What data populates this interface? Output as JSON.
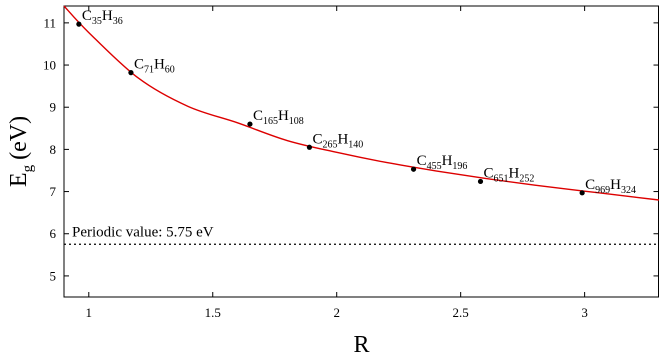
{
  "chart_data": {
    "type": "scatter",
    "title": "",
    "xlabel": "R",
    "ylabel": {
      "main": "E",
      "sub": "g",
      "unit": "(eV)"
    },
    "xlim": [
      0.9,
      3.3
    ],
    "ylim": [
      4.5,
      11.4
    ],
    "xticks": [
      1,
      1.5,
      2,
      2.5,
      3
    ],
    "xtick_labels": [
      "1",
      "1.5",
      "2",
      "2.5",
      "3"
    ],
    "yticks": [
      5,
      6,
      7,
      8,
      9,
      10,
      11
    ],
    "ytick_labels": [
      "5",
      "6",
      "7",
      "8",
      "9",
      "10",
      "11"
    ],
    "grid": false,
    "points": [
      {
        "x": 0.96,
        "y": 10.97,
        "label": {
          "c": "35",
          "h": "36"
        }
      },
      {
        "x": 1.17,
        "y": 9.82,
        "label": {
          "c": "71",
          "h": "60"
        }
      },
      {
        "x": 1.65,
        "y": 8.6,
        "label": {
          "c": "165",
          "h": "108"
        }
      },
      {
        "x": 1.89,
        "y": 8.05,
        "label": {
          "c": "265",
          "h": "140"
        }
      },
      {
        "x": 2.31,
        "y": 7.53,
        "label": {
          "c": "455",
          "h": "196"
        }
      },
      {
        "x": 2.58,
        "y": 7.24,
        "label": {
          "c": "651",
          "h": "252"
        }
      },
      {
        "x": 2.99,
        "y": 6.97,
        "label": {
          "c": "969",
          "h": "324"
        }
      }
    ],
    "fit_curve": {
      "color": "#dd0000",
      "x": [
        0.9,
        1.0,
        1.2,
        1.4,
        1.6,
        1.8,
        2.0,
        2.2,
        2.4,
        2.6,
        2.8,
        3.0,
        3.2,
        3.3
      ],
      "y": [
        11.4,
        10.77,
        9.69,
        9.02,
        8.63,
        8.21,
        7.93,
        7.69,
        7.49,
        7.31,
        7.15,
        7.01,
        6.87,
        6.8
      ]
    },
    "reference_line": {
      "y": 5.75,
      "style": "dotted",
      "label": "Periodic value: 5.75 eV"
    }
  }
}
